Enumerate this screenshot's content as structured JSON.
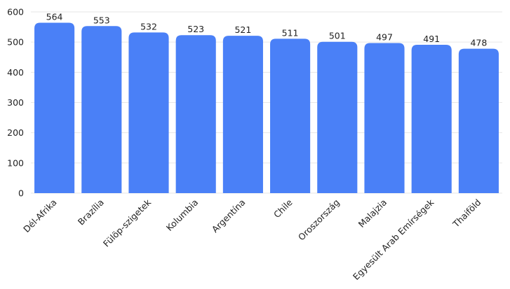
{
  "chart_data": {
    "type": "bar",
    "categories": [
      "Dél-Afrika",
      "Brazília",
      "Fülöp-szigetek",
      "Kolumbia",
      "Argentína",
      "Chile",
      "Oroszország",
      "Malajzia",
      "Egyesült Arab Emírségek",
      "Thaiföld"
    ],
    "values": [
      564,
      553,
      532,
      523,
      521,
      511,
      501,
      497,
      491,
      478
    ],
    "color": "#4a80f7",
    "ylim": [
      0,
      600
    ],
    "yticks": [
      0,
      100,
      200,
      300,
      400,
      500,
      600
    ],
    "grid": true
  }
}
